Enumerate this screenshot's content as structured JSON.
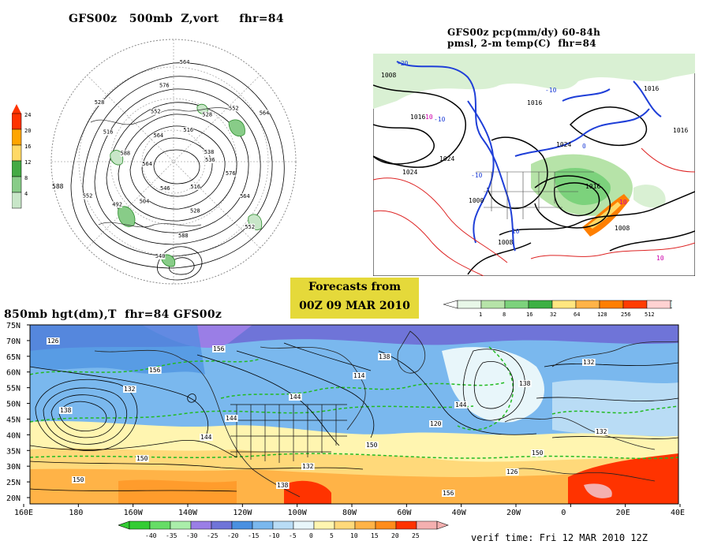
{
  "panel_500mb": {
    "title": "GFS00z   500mb  Z,vort     fhr=84",
    "colorbar_ticks": [
      "24",
      "20",
      "16",
      "12",
      "8",
      "4"
    ],
    "colorbar_colors": [
      "#ff3300",
      "#ffa500",
      "#ffd966",
      "#44aa44",
      "#88cc88",
      "#c8e6c8"
    ],
    "contour_labels": [
      "536",
      "576",
      "564",
      "552",
      "516",
      "528",
      "588",
      "540",
      "546",
      "504",
      "492",
      "552",
      "564",
      "588",
      "516",
      "528",
      "564",
      "552",
      "576",
      "564",
      "516",
      "528",
      "552",
      "564",
      "538"
    ]
  },
  "panel_pmsl": {
    "title_line1": "GFS00z pcp(mm/dy) 60-84h",
    "title_line2": "pmsl, 2-m temp(C)  fhr=84",
    "pressure_labels": [
      "1008",
      "1016",
      "1024",
      "1000",
      "1008",
      "1016",
      "1024",
      "1016",
      "1008",
      "1016",
      "1016",
      "1024"
    ],
    "temp_labels": [
      "-20",
      "-10",
      "-10",
      "-10",
      "-10",
      "0",
      "10",
      "10",
      "10"
    ],
    "colorbar_ticks": [
      "1",
      "8",
      "16",
      "32",
      "64",
      "128",
      "256",
      "512"
    ],
    "colorbar_colors": [
      "#e8f7e8",
      "#b6e3a8",
      "#7cd27c",
      "#3cb043",
      "#ffe680",
      "#ffb347",
      "#ff7f00",
      "#ff3c00",
      "#ffd2d2"
    ]
  },
  "forecast_box": {
    "line1": "Forecasts from",
    "line2": "00Z 09 MAR 2010"
  },
  "panel_850mb": {
    "title": "850mb hgt(dm),T  fhr=84 GFS00z",
    "lat_labels": [
      "75N",
      "70N",
      "65N",
      "60N",
      "55N",
      "50N",
      "45N",
      "40N",
      "35N",
      "30N",
      "25N",
      "20N"
    ],
    "lon_labels": [
      "160E",
      "180",
      "160W",
      "140W",
      "120W",
      "100W",
      "80W",
      "60W",
      "40W",
      "20W",
      "0",
      "20E",
      "40E"
    ],
    "height_labels": [
      "126",
      "132",
      "144",
      "138",
      "114",
      "120",
      "126",
      "132",
      "138",
      "150",
      "156",
      "144",
      "150",
      "156",
      "138",
      "132",
      "150",
      "156",
      "144",
      "132",
      "138",
      "144",
      "150"
    ],
    "colorbar_ticks": [
      "-40",
      "-35",
      "-30",
      "-25",
      "-20",
      "-15",
      "-10",
      "-5",
      "0",
      "5",
      "10",
      "15",
      "20",
      "25"
    ],
    "colorbar_colors": [
      "#33cc33",
      "#66dd66",
      "#aaeeaa",
      "#9a7ee6",
      "#6f74d8",
      "#4a90e0",
      "#7ab8ee",
      "#b9dcf5",
      "#e8f6fa",
      "#fff5b0",
      "#ffd97a",
      "#ffb347",
      "#ff8c1a",
      "#ff3300",
      "#f4b0b0"
    ],
    "verif_time": "verif time: Fri 12 MAR 2010 12Z"
  }
}
